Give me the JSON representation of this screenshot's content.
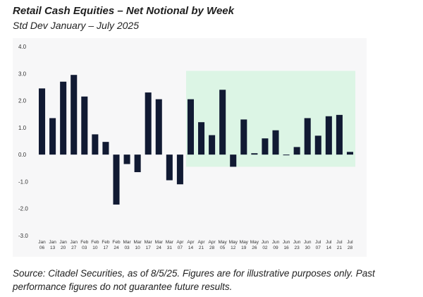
{
  "title": "Retail Cash Equities – Net Notional by Week",
  "subtitle": "Std Dev January – July 2025",
  "source_note": "Source: Citadel Securities, as of 8/5/25. Figures are for illustrative purposes only. Past performance figures do not guarantee future results.",
  "colors": {
    "bar": "#111a33",
    "highlight": "#dcf5e5"
  },
  "chart_data": {
    "type": "bar",
    "title": "",
    "xlabel": "",
    "ylabel": "",
    "ylim": [
      -3.0,
      4.0
    ],
    "yticks": [
      "4.0",
      "3.0",
      "2.0",
      "1.0",
      "0.0",
      "-1.0",
      "-2.0",
      "-3.0"
    ],
    "ytick_values": [
      4,
      3,
      2,
      1,
      0,
      -1,
      -2,
      -3
    ],
    "grid": false,
    "highlight_range": {
      "from_category": "Apr 14",
      "to_category": "Jul 28",
      "y_from": -0.45,
      "y_to": 3.1
    },
    "categories": [
      {
        "month": "Jan",
        "day": "06"
      },
      {
        "month": "Jan",
        "day": "13"
      },
      {
        "month": "Jan",
        "day": "20"
      },
      {
        "month": "Jan",
        "day": "27"
      },
      {
        "month": "Feb",
        "day": "03"
      },
      {
        "month": "Feb",
        "day": "10"
      },
      {
        "month": "Feb",
        "day": "17"
      },
      {
        "month": "Feb",
        "day": "24"
      },
      {
        "month": "Mar",
        "day": "03"
      },
      {
        "month": "Mar",
        "day": "10"
      },
      {
        "month": "Mar",
        "day": "17"
      },
      {
        "month": "Mar",
        "day": "24"
      },
      {
        "month": "Mar",
        "day": "31"
      },
      {
        "month": "Apr",
        "day": "07"
      },
      {
        "month": "Apr",
        "day": "14"
      },
      {
        "month": "Apr",
        "day": "21"
      },
      {
        "month": "Apr",
        "day": "28"
      },
      {
        "month": "May",
        "day": "05"
      },
      {
        "month": "May",
        "day": "12"
      },
      {
        "month": "May",
        "day": "19"
      },
      {
        "month": "May",
        "day": "26"
      },
      {
        "month": "Jun",
        "day": "02"
      },
      {
        "month": "Jun",
        "day": "09"
      },
      {
        "month": "Jun",
        "day": "16"
      },
      {
        "month": "Jun",
        "day": "23"
      },
      {
        "month": "Jun",
        "day": "30"
      },
      {
        "month": "Jul",
        "day": "07"
      },
      {
        "month": "Jul",
        "day": "14"
      },
      {
        "month": "Jul",
        "day": "21"
      },
      {
        "month": "Jul",
        "day": "28"
      }
    ],
    "values": [
      2.45,
      1.35,
      2.7,
      2.95,
      2.15,
      0.75,
      0.47,
      -1.85,
      -0.35,
      -0.65,
      2.3,
      2.05,
      -0.95,
      -1.1,
      2.05,
      1.2,
      0.72,
      2.4,
      -0.45,
      1.3,
      0.05,
      0.6,
      0.9,
      0.0,
      0.28,
      1.35,
      0.7,
      1.42,
      1.47,
      0.1
    ]
  }
}
